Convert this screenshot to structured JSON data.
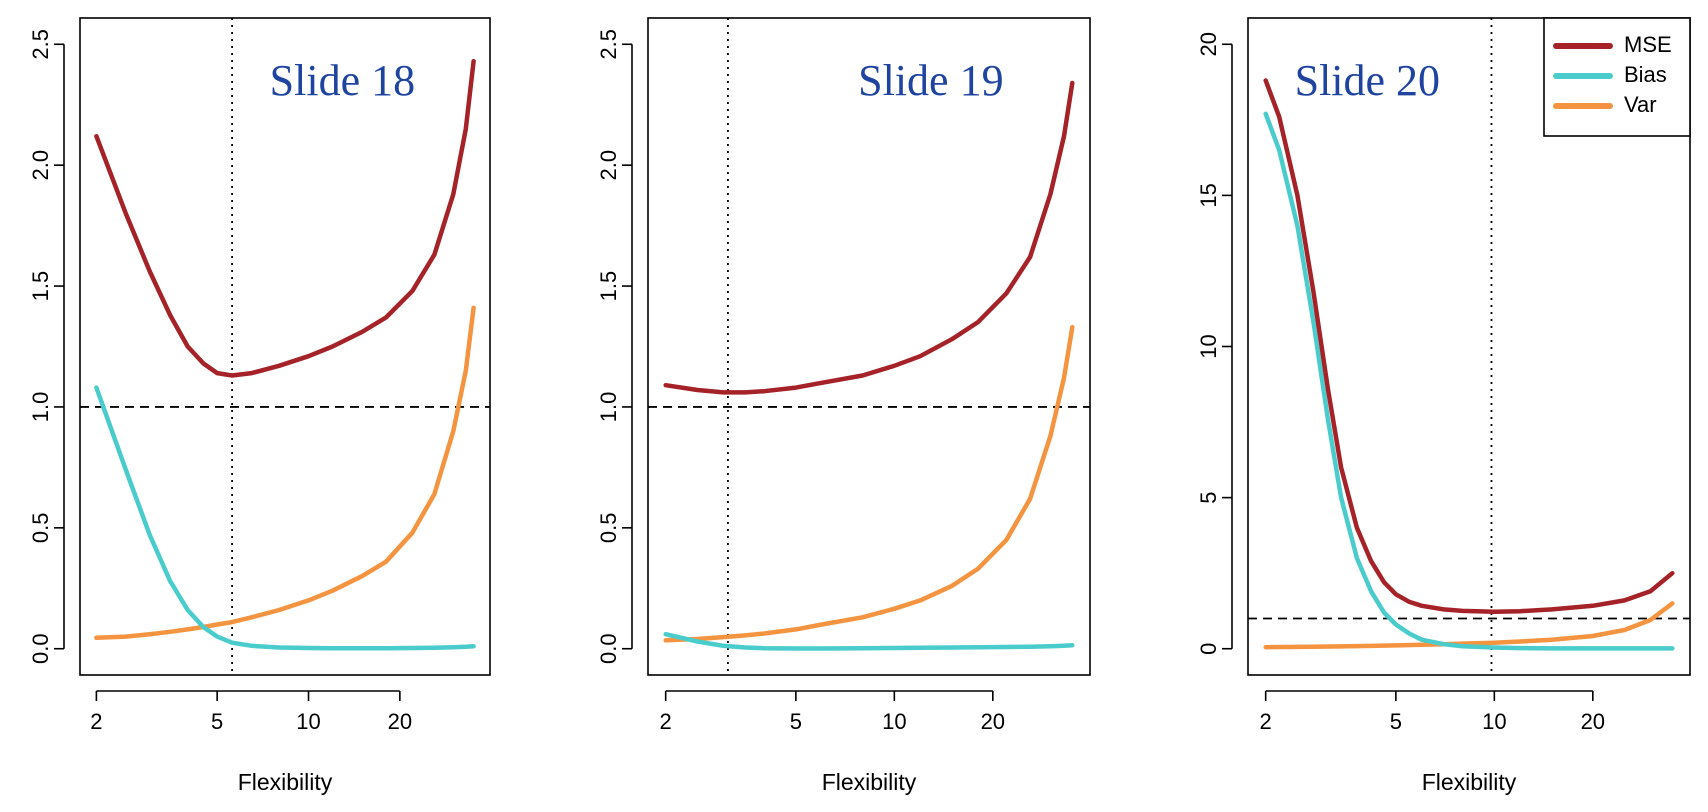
{
  "colors": {
    "mse": "#a52328",
    "bias": "#4acccc",
    "var": "#f59440",
    "title": "#1f44a0"
  },
  "chart_data": [
    {
      "type": "line",
      "title": "Slide 18",
      "xlabel": "Flexibility",
      "ylabel": "",
      "x_scale": "log",
      "xlim": [
        2,
        35
      ],
      "ylim": [
        0,
        2.5
      ],
      "x_ticks": [
        2,
        5,
        10,
        20
      ],
      "y_ticks": [
        0.0,
        0.5,
        1.0,
        1.5,
        2.0,
        2.5
      ],
      "y_tick_labels": [
        "0.0",
        "0.5",
        "1.0",
        "1.5",
        "2.0",
        "2.5"
      ],
      "hline": 1.0,
      "vline": 5.6,
      "legend": null,
      "series": [
        {
          "name": "MSE",
          "color_key": "mse",
          "x": [
            2,
            2.5,
            3,
            3.5,
            4,
            4.5,
            5,
            5.6,
            6.5,
            8,
            10,
            12,
            15,
            18,
            22,
            26,
            30,
            33,
            35
          ],
          "y": [
            2.12,
            1.8,
            1.56,
            1.38,
            1.25,
            1.18,
            1.14,
            1.13,
            1.14,
            1.17,
            1.21,
            1.25,
            1.31,
            1.37,
            1.48,
            1.63,
            1.88,
            2.15,
            2.43
          ]
        },
        {
          "name": "Bias",
          "color_key": "bias",
          "x": [
            2,
            2.5,
            3,
            3.5,
            4,
            4.5,
            5,
            5.6,
            6.5,
            8,
            10,
            12,
            15,
            18,
            22,
            26,
            30,
            33,
            35
          ],
          "y": [
            1.08,
            0.74,
            0.47,
            0.28,
            0.16,
            0.09,
            0.05,
            0.025,
            0.012,
            0.005,
            0.003,
            0.002,
            0.002,
            0.002,
            0.003,
            0.004,
            0.006,
            0.008,
            0.01
          ]
        },
        {
          "name": "Var",
          "color_key": "var",
          "x": [
            2,
            2.5,
            3,
            3.5,
            4,
            4.5,
            5,
            5.6,
            6.5,
            8,
            10,
            12,
            15,
            18,
            22,
            26,
            30,
            33,
            35
          ],
          "y": [
            0.045,
            0.05,
            0.06,
            0.07,
            0.08,
            0.09,
            0.1,
            0.11,
            0.13,
            0.16,
            0.2,
            0.24,
            0.3,
            0.36,
            0.48,
            0.64,
            0.9,
            1.15,
            1.41
          ]
        }
      ]
    },
    {
      "type": "line",
      "title": "Slide 19",
      "xlabel": "Flexibility",
      "ylabel": "",
      "x_scale": "log",
      "xlim": [
        2,
        35
      ],
      "ylim": [
        0,
        2.5
      ],
      "x_ticks": [
        2,
        5,
        10,
        20
      ],
      "y_ticks": [
        0.0,
        0.5,
        1.0,
        1.5,
        2.0,
        2.5
      ],
      "y_tick_labels": [
        "0.0",
        "0.5",
        "1.0",
        "1.5",
        "2.0",
        "2.5"
      ],
      "hline": 1.0,
      "vline": 3.1,
      "legend": null,
      "series": [
        {
          "name": "MSE",
          "color_key": "mse",
          "x": [
            2,
            2.5,
            3,
            3.5,
            4,
            5,
            6,
            8,
            10,
            12,
            15,
            18,
            22,
            26,
            30,
            33,
            35
          ],
          "y": [
            1.09,
            1.07,
            1.06,
            1.06,
            1.065,
            1.08,
            1.1,
            1.13,
            1.17,
            1.21,
            1.28,
            1.35,
            1.47,
            1.62,
            1.88,
            2.12,
            2.34
          ]
        },
        {
          "name": "Bias",
          "color_key": "bias",
          "x": [
            2,
            2.5,
            3,
            3.5,
            4,
            5,
            6,
            8,
            10,
            12,
            15,
            18,
            22,
            26,
            30,
            33,
            35
          ],
          "y": [
            0.06,
            0.03,
            0.012,
            0.005,
            0.002,
            0.001,
            0.001,
            0.002,
            0.003,
            0.004,
            0.005,
            0.006,
            0.007,
            0.008,
            0.01,
            0.012,
            0.014
          ]
        },
        {
          "name": "Var",
          "color_key": "var",
          "x": [
            2,
            2.5,
            3,
            3.5,
            4,
            5,
            6,
            8,
            10,
            12,
            15,
            18,
            22,
            26,
            30,
            33,
            35
          ],
          "y": [
            0.035,
            0.04,
            0.048,
            0.055,
            0.063,
            0.08,
            0.1,
            0.13,
            0.165,
            0.2,
            0.26,
            0.33,
            0.45,
            0.62,
            0.88,
            1.12,
            1.33
          ]
        }
      ]
    },
    {
      "type": "line",
      "title": "Slide 20",
      "xlabel": "Flexibility",
      "ylabel": "",
      "x_scale": "log",
      "xlim": [
        2,
        35
      ],
      "ylim": [
        0,
        20
      ],
      "x_ticks": [
        2,
        5,
        10,
        20
      ],
      "y_ticks": [
        0,
        5,
        10,
        15,
        20
      ],
      "y_tick_labels": [
        "0",
        "5",
        "10",
        "15",
        "20"
      ],
      "hline": 1.0,
      "vline": 9.8,
      "legend": {
        "placement": "top-right",
        "entries": [
          "MSE",
          "Bias",
          "Var"
        ]
      },
      "series": [
        {
          "name": "MSE",
          "color_key": "mse",
          "x": [
            2,
            2.2,
            2.5,
            2.8,
            3.1,
            3.4,
            3.8,
            4.2,
            4.6,
            5,
            5.5,
            6,
            7,
            8,
            10,
            12,
            15,
            20,
            25,
            30,
            35
          ],
          "y": [
            18.8,
            17.6,
            15.0,
            11.8,
            8.6,
            6.0,
            4.0,
            2.9,
            2.2,
            1.8,
            1.55,
            1.42,
            1.3,
            1.25,
            1.22,
            1.24,
            1.3,
            1.42,
            1.6,
            1.9,
            2.5
          ]
        },
        {
          "name": "Bias",
          "color_key": "bias",
          "x": [
            2,
            2.2,
            2.5,
            2.8,
            3.1,
            3.4,
            3.8,
            4.2,
            4.6,
            5,
            5.5,
            6,
            7,
            8,
            10,
            12,
            15,
            20,
            25,
            30,
            35
          ],
          "y": [
            17.7,
            16.5,
            14.0,
            10.8,
            7.6,
            5.0,
            3.0,
            1.9,
            1.2,
            0.8,
            0.5,
            0.3,
            0.15,
            0.08,
            0.04,
            0.02,
            0.01,
            0.01,
            0.01,
            0.01,
            0.01
          ]
        },
        {
          "name": "Var",
          "color_key": "var",
          "x": [
            2,
            2.5,
            3,
            4,
            5,
            6,
            7,
            8,
            10,
            12,
            15,
            20,
            25,
            30,
            35
          ],
          "y": [
            0.05,
            0.06,
            0.07,
            0.09,
            0.11,
            0.13,
            0.15,
            0.17,
            0.2,
            0.24,
            0.3,
            0.42,
            0.62,
            0.95,
            1.5
          ]
        }
      ]
    }
  ]
}
